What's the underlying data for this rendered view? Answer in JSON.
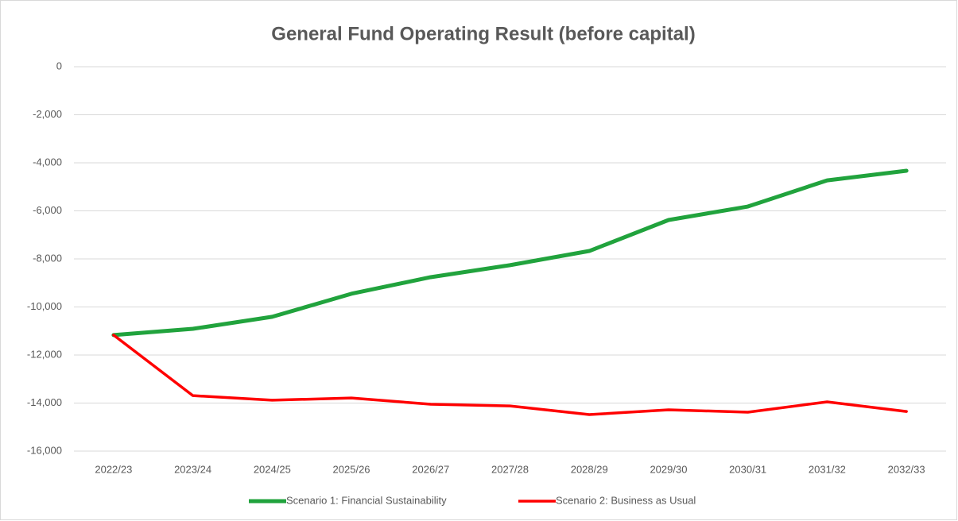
{
  "chart_data": {
    "type": "line",
    "title": "General Fund Operating Result (before capital)",
    "categories": [
      "2022/23",
      "2023/24",
      "2024/25",
      "2025/26",
      "2026/27",
      "2027/28",
      "2028/29",
      "2029/30",
      "2030/31",
      "2031/32",
      "2032/33"
    ],
    "series": [
      {
        "name": "Scenario 1: Financial Sustainability",
        "color": "#21a33d",
        "values": [
          -11170,
          -10910,
          -10410,
          -9450,
          -8760,
          -8260,
          -7670,
          -6380,
          -5820,
          -4730,
          -4330
        ]
      },
      {
        "name": "Scenario 2: Business as Usual",
        "color": "#ff0000",
        "values": [
          -11170,
          -13690,
          -13880,
          -13790,
          -14050,
          -14120,
          -14480,
          -14280,
          -14380,
          -13950,
          -14350
        ]
      }
    ],
    "ylim": [
      -16000,
      0
    ],
    "yticks": [
      0,
      {
        "value": -2000,
        "label": "-2,000"
      },
      {
        "value": -4000,
        "label": "-4,000"
      },
      {
        "value": -6000,
        "label": "-6,000"
      },
      {
        "value": -8000,
        "label": "-8,000"
      },
      {
        "value": -10000,
        "label": "-10,000"
      },
      {
        "value": -12000,
        "label": "-12,000"
      },
      {
        "value": -14000,
        "label": "-14,000"
      },
      {
        "value": -16000,
        "label": "-16,000"
      }
    ],
    "grid": true,
    "legend": "bottom"
  }
}
